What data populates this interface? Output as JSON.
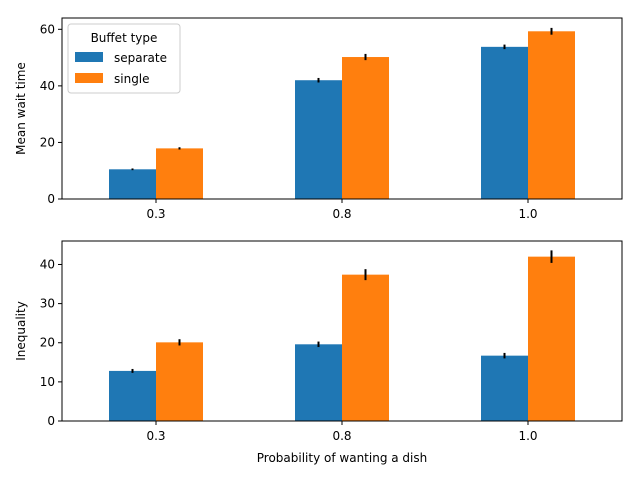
{
  "chart_data": {
    "type": "bar",
    "xlabel": "Probability of wanting a dish",
    "categories": [
      "0.3",
      "0.8",
      "1.0"
    ],
    "legend": {
      "title": "Buffet type",
      "placement": "top-left",
      "entries": [
        "separate",
        "single"
      ]
    },
    "colors": {
      "separate": "#1f77b4",
      "single": "#ff7f0e",
      "errorbar": "#000000"
    },
    "grid": false,
    "panels": [
      {
        "ylabel": "Mean wait time",
        "ylim": [
          0,
          64
        ],
        "yticks": [
          0,
          20,
          40,
          60
        ],
        "series": [
          {
            "name": "separate",
            "values": [
              10.5,
              42.0,
              53.8
            ],
            "errors": [
              0.3,
              0.8,
              0.8
            ]
          },
          {
            "name": "single",
            "values": [
              17.9,
              50.2,
              59.3
            ],
            "errors": [
              0.4,
              1.1,
              1.2
            ]
          }
        ]
      },
      {
        "ylabel": "Inequality",
        "ylim": [
          0,
          46
        ],
        "yticks": [
          0,
          10,
          20,
          30,
          40
        ],
        "series": [
          {
            "name": "separate",
            "values": [
              12.8,
              19.6,
              16.7
            ],
            "errors": [
              0.5,
              0.7,
              0.7
            ]
          },
          {
            "name": "single",
            "values": [
              20.1,
              37.4,
              42.0
            ],
            "errors": [
              0.8,
              1.4,
              1.6
            ]
          }
        ]
      }
    ]
  }
}
